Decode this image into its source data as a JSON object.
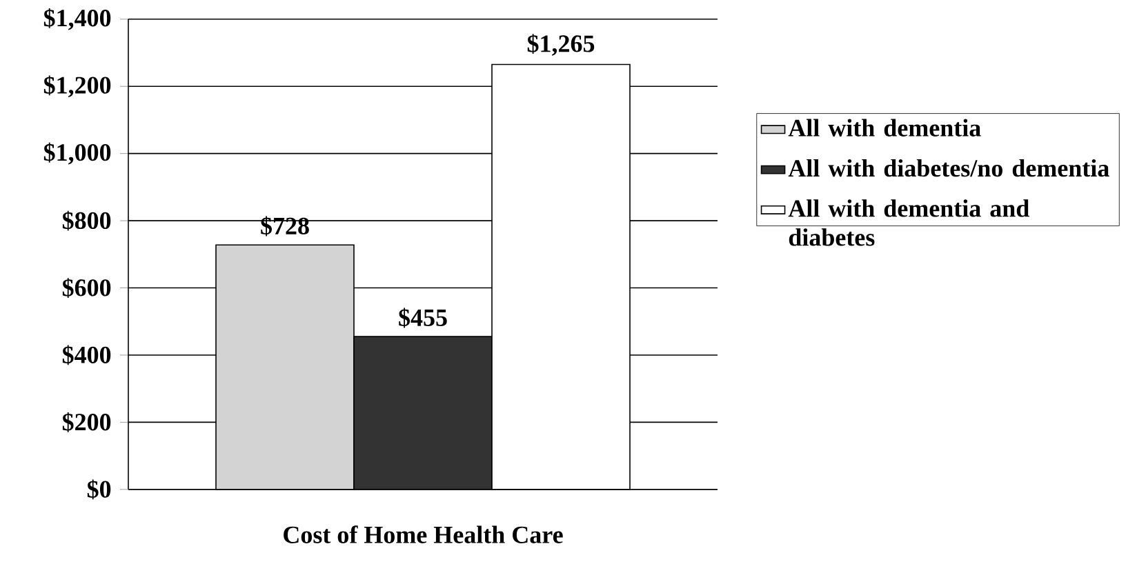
{
  "chart_data": {
    "type": "bar",
    "categories": [
      "Cost of Home Health Care"
    ],
    "series": [
      {
        "name": "All with dementia",
        "color": "#d3d3d3",
        "values": [
          728
        ],
        "value_labels": [
          "$728"
        ]
      },
      {
        "name": "All with diabetes/no dementia",
        "color": "#333333",
        "values": [
          455
        ],
        "value_labels": [
          "$455"
        ]
      },
      {
        "name": "All with dementia  and diabetes",
        "color": "#ffffff",
        "values": [
          1265
        ],
        "value_labels": [
          "$1,265"
        ]
      }
    ],
    "ylim": [
      0,
      1400
    ],
    "yticks": [
      {
        "value": 0,
        "label": "$0"
      },
      {
        "value": 200,
        "label": "$200"
      },
      {
        "value": 400,
        "label": "$400"
      },
      {
        "value": 600,
        "label": "$600"
      },
      {
        "value": 800,
        "label": "$800"
      },
      {
        "value": 1000,
        "label": "$1,000"
      },
      {
        "value": 1200,
        "label": "$1,200"
      },
      {
        "value": 1400,
        "label": "$1,400"
      }
    ],
    "grid": "y",
    "legend": "right"
  }
}
